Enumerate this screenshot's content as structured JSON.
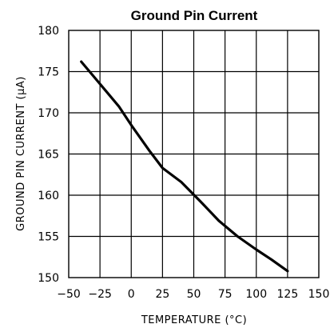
{
  "chart_data": {
    "type": "line",
    "title": "Ground Pin Current",
    "xlabel": "TEMPERATURE (°C)",
    "ylabel": "GROUND PIN CURRENT (μA)",
    "xlim": [
      -50,
      150
    ],
    "ylim": [
      150,
      180
    ],
    "xticks": [
      -50,
      -25,
      0,
      25,
      50,
      75,
      100,
      125,
      150
    ],
    "yticks": [
      150,
      155,
      160,
      165,
      170,
      175,
      180
    ],
    "x_tick_labels": [
      "−50",
      "−25",
      "0",
      "25",
      "50",
      "75",
      "100",
      "125",
      "150"
    ],
    "y_tick_labels": [
      "150",
      "155",
      "160",
      "165",
      "170",
      "175",
      "180"
    ],
    "grid": true,
    "series": [
      {
        "x": [
          -40,
          -25,
          -10,
          0,
          15,
          25,
          40,
          55,
          70,
          85,
          100,
          112,
          125
        ],
        "y": [
          176.2,
          173.5,
          170.8,
          168.5,
          165.3,
          163.3,
          161.6,
          159.3,
          156.9,
          155.0,
          153.4,
          152.2,
          150.8
        ]
      }
    ]
  }
}
